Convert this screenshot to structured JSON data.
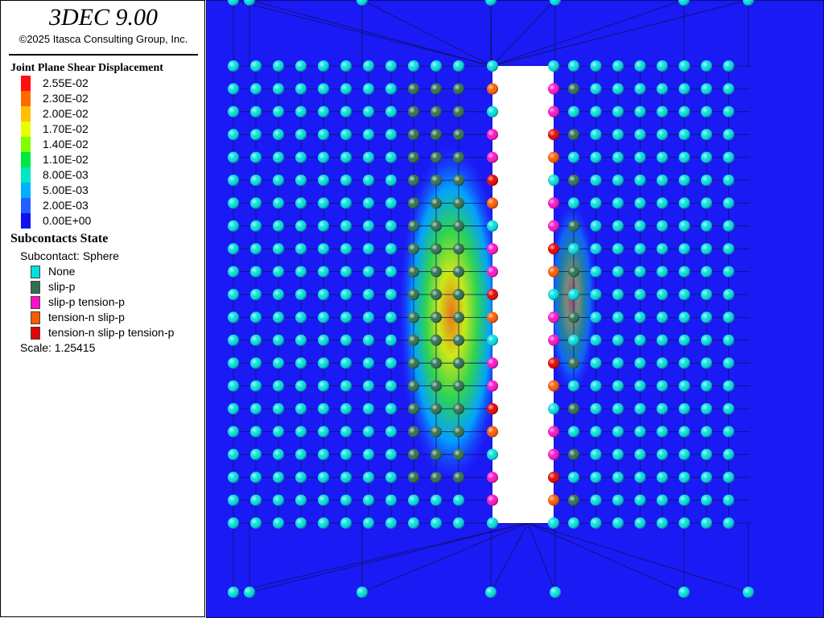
{
  "header": {
    "title": "3DEC 9.00",
    "copyright": "©2025 Itasca Consulting Group, Inc."
  },
  "contour_legend": {
    "title": "Joint Plane Shear Displacement",
    "levels": [
      {
        "label": "2.55E-02",
        "color": "#ff1010"
      },
      {
        "label": "2.30E-02",
        "color": "#ff6a00"
      },
      {
        "label": "2.00E-02",
        "color": "#ffc000"
      },
      {
        "label": "1.70E-02",
        "color": "#e8ff00"
      },
      {
        "label": "1.40E-02",
        "color": "#80ff00"
      },
      {
        "label": "1.10E-02",
        "color": "#00e840"
      },
      {
        "label": "8.00E-03",
        "color": "#00e8c0"
      },
      {
        "label": "5.00E-03",
        "color": "#00b0ff"
      },
      {
        "label": "2.00E-03",
        "color": "#2060ff"
      },
      {
        "label": "0.00E+00",
        "color": "#1010f0"
      }
    ]
  },
  "state_legend": {
    "title": "Subcontacts State",
    "subtitle": "Subcontact: Sphere",
    "entries": [
      {
        "label": "None",
        "color": "#00e0e0"
      },
      {
        "label": "slip-p",
        "color": "#2e7050"
      },
      {
        "label": "slip-p tension-p",
        "color": "#ff10c8"
      },
      {
        "label": "tension-n slip-p",
        "color": "#ff5a00"
      },
      {
        "label": "tension-n slip-p tension-p",
        "color": "#e80000"
      }
    ],
    "scale": "Scale: 1.25415"
  }
}
